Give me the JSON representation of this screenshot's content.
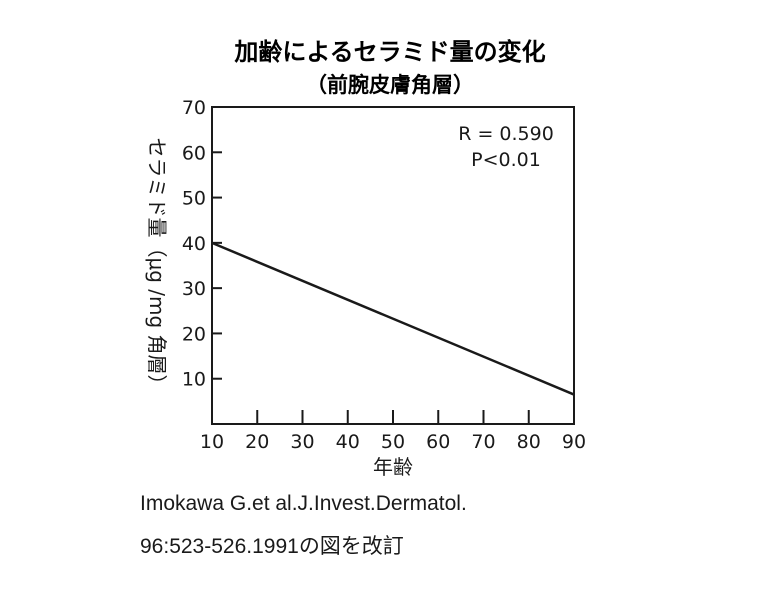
{
  "chart_data": {
    "type": "line",
    "title": "加齢によるセラミド量の変化",
    "subtitle": "（前腕皮膚角層）",
    "xlabel": "年齢",
    "ylabel": "セラミド量（μg /mg 角層）",
    "xlim": [
      10,
      90
    ],
    "ylim": [
      0,
      70
    ],
    "xticks": [
      10,
      20,
      30,
      40,
      50,
      60,
      70,
      80,
      90
    ],
    "yticks": [
      10,
      20,
      30,
      40,
      50,
      60,
      70
    ],
    "series": [
      {
        "x": [
          10,
          90
        ],
        "y": [
          40,
          6.5
        ]
      }
    ],
    "annotations": [
      "R = 0.590",
      "P<0.01"
    ],
    "grid": false,
    "legend": "none"
  },
  "citation": {
    "line1": "Imokawa G.et al.J.Invest.Dermatol.",
    "line2": "96:523-526.1991の図を改訂"
  },
  "colors": {
    "line": "#1a1a1a",
    "frame": "#1a1a1a"
  }
}
